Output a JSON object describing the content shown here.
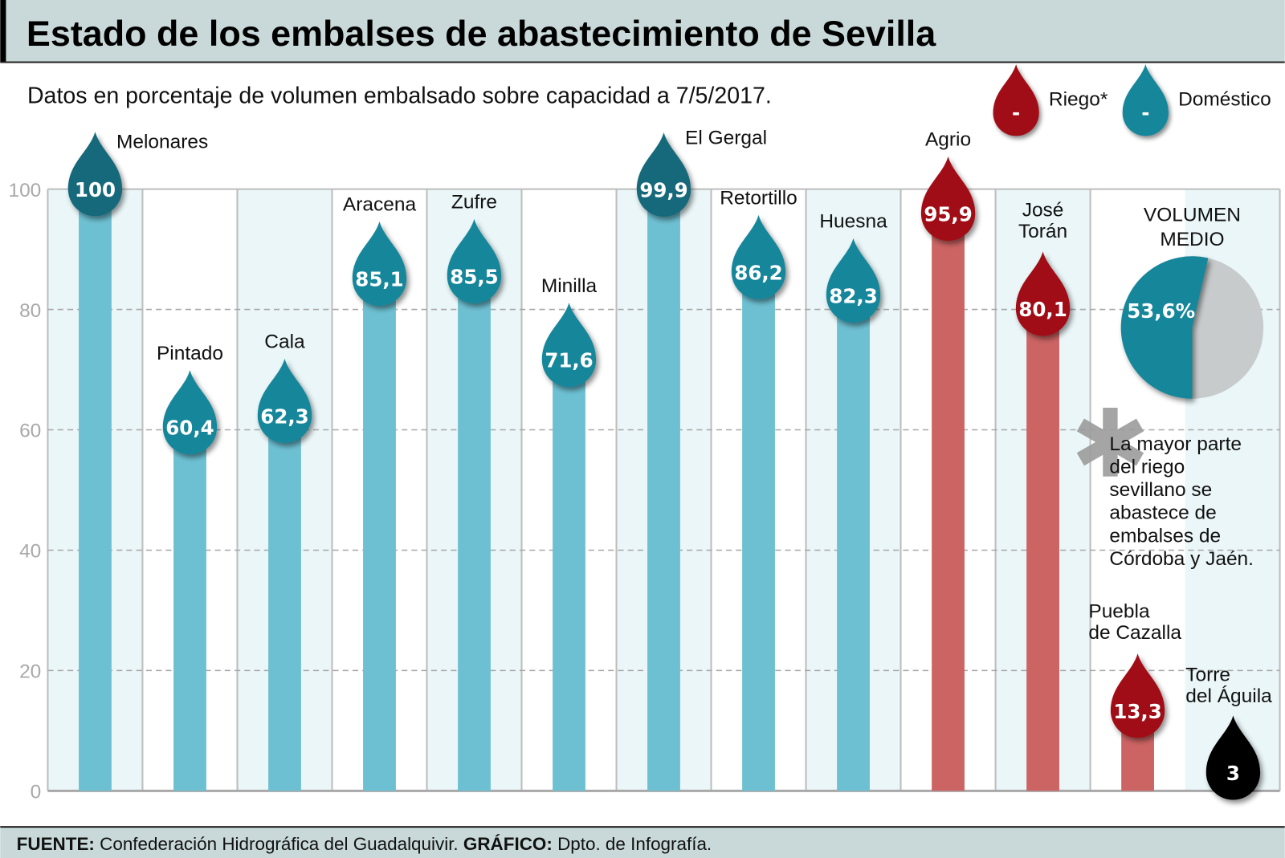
{
  "title": "Estado de los embalses de abastecimiento de Sevilla",
  "subtitle": "Datos en porcentaje de volumen embalsado sobre capacidad a 7/5/2017.",
  "legend": {
    "position": "top-right",
    "items": [
      {
        "label": "Riego*",
        "color": "#a00d12",
        "symbol": "-"
      },
      {
        "label": "Doméstico",
        "color": "#12869b",
        "symbol": "-"
      }
    ]
  },
  "chart_data": {
    "type": "bar",
    "title": "Estado de los embalses de abastecimiento de Sevilla",
    "ylim": [
      0,
      100
    ],
    "yticks": [
      0,
      20,
      40,
      60,
      80,
      100
    ],
    "grid": true,
    "categories": [
      "Melonares",
      "Pintado",
      "Cala",
      "Aracena",
      "Zufre",
      "Minilla",
      "El Gergal",
      "Retortillo",
      "Huesna",
      "Agrio",
      "José Torán",
      "Puebla de Cazalla",
      "Torre del Águila"
    ],
    "values": [
      100,
      60.4,
      62.3,
      85.1,
      85.5,
      71.6,
      99.9,
      86.2,
      82.3,
      95.9,
      80.1,
      13.3,
      3
    ],
    "value_labels": [
      "100",
      "60,4",
      "62,3",
      "85,1",
      "85,5",
      "71,6",
      "99,9",
      "86,2",
      "82,3",
      "95,9",
      "80,1",
      "13,3",
      "3"
    ],
    "use": [
      "Doméstico",
      "Doméstico",
      "Doméstico",
      "Doméstico",
      "Doméstico",
      "Doméstico",
      "Doméstico",
      "Doméstico",
      "Doméstico",
      "Riego*",
      "Riego*",
      "Riego*",
      "Riego*"
    ],
    "pie": {
      "title_lines": [
        "VOLUMEN",
        "MEDIO"
      ],
      "value": 53.6,
      "label": "53,6%",
      "colors": [
        "#12869b",
        "#c7cbcb"
      ]
    }
  },
  "colors": {
    "domestic_drop": "#12869b",
    "domestic_drop_full": "#16697a",
    "domestic_bar": "#6dc0d2",
    "irrigation_drop": "#a00d12",
    "irrigation_bar": "#cc6464",
    "empty_drop": "#000000",
    "title_bg": "#c9d9d9"
  },
  "note": {
    "symbol": "*",
    "lines": [
      "La mayor parte",
      "del riego",
      "sevillano se",
      "abastece de",
      "embalses de",
      "Córdoba y Jaén."
    ]
  },
  "footer": {
    "source_label": "FUENTE:",
    "source_text": " Confederación Hidrográfica del Guadalquivir. ",
    "graphic_label": "GRÁFICO:",
    "graphic_text": " Dpto. de Infografía."
  }
}
